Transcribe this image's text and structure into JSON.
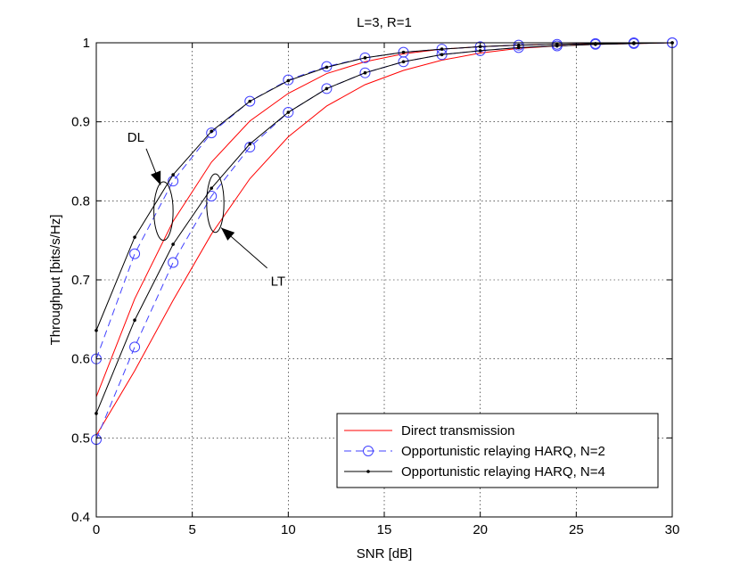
{
  "chart_data": {
    "type": "line",
    "title": "L=3, R=1",
    "xlabel": "SNR [dB]",
    "ylabel": "Throughput [bits/s/Hz]",
    "xlim": [
      0,
      30
    ],
    "ylim": [
      0.4,
      1
    ],
    "xticks": [
      0,
      5,
      10,
      15,
      20,
      25,
      30
    ],
    "yticks": [
      0.4,
      0.5,
      0.6,
      0.7,
      0.8,
      0.9,
      1
    ],
    "xtick_labels": [
      "0",
      "5",
      "10",
      "15",
      "20",
      "25",
      "30"
    ],
    "ytick_labels": [
      "0.4",
      "0.5",
      "0.6",
      "0.7",
      "0.8",
      "0.9",
      "1"
    ],
    "grid": true,
    "legend_position": "bottom-right",
    "x": [
      0,
      2,
      4,
      6,
      8,
      10,
      12,
      14,
      16,
      18,
      20,
      22,
      24,
      26,
      28,
      30
    ],
    "series": [
      {
        "name": "Direct transmission",
        "group": "DL",
        "color": "#ff0000",
        "style": "solid",
        "marker": "none",
        "values": [
          0.552,
          0.676,
          0.774,
          0.849,
          0.901,
          0.936,
          0.961,
          0.976,
          0.986,
          0.992,
          0.995,
          0.997,
          0.998,
          0.999,
          1.0,
          1.0
        ]
      },
      {
        "name": "Direct transmission",
        "group": "LT",
        "color": "#ff0000",
        "style": "solid",
        "marker": "none",
        "values": [
          0.503,
          0.585,
          0.674,
          0.758,
          0.828,
          0.881,
          0.92,
          0.947,
          0.965,
          0.978,
          0.987,
          0.993,
          0.996,
          0.998,
          0.999,
          1.0
        ]
      },
      {
        "name": "Opportunistic relaying HARQ, N=2",
        "group": "DL",
        "color": "#4040ff",
        "style": "dashed",
        "marker": "circle",
        "values": [
          0.6,
          0.733,
          0.825,
          0.886,
          0.926,
          0.953,
          0.97,
          0.981,
          0.988,
          0.992,
          0.995,
          0.997,
          0.998,
          0.999,
          1.0,
          1.0
        ]
      },
      {
        "name": "Opportunistic relaying HARQ, N=2",
        "group": "LT",
        "color": "#4040ff",
        "style": "dashed",
        "marker": "circle",
        "values": [
          0.498,
          0.615,
          0.722,
          0.806,
          0.868,
          0.912,
          0.942,
          0.962,
          0.976,
          0.985,
          0.99,
          0.994,
          0.996,
          0.998,
          0.999,
          1.0
        ]
      },
      {
        "name": "Opportunistic relaying HARQ, N=4",
        "group": "DL",
        "color": "#000000",
        "style": "solid",
        "marker": "dot",
        "values": [
          0.636,
          0.754,
          0.833,
          0.888,
          0.926,
          0.952,
          0.969,
          0.981,
          0.988,
          0.992,
          0.995,
          0.997,
          0.998,
          0.999,
          1.0,
          1.0
        ]
      },
      {
        "name": "Opportunistic relaying HARQ, N=4",
        "group": "LT",
        "color": "#000000",
        "style": "solid",
        "marker": "dot",
        "values": [
          0.531,
          0.649,
          0.745,
          0.816,
          0.872,
          0.912,
          0.942,
          0.962,
          0.976,
          0.985,
          0.99,
          0.994,
          0.996,
          0.998,
          0.999,
          1.0
        ]
      }
    ],
    "legend": [
      {
        "label": "Direct transmission",
        "color": "#ff0000",
        "style": "solid",
        "marker": "none"
      },
      {
        "label": "Opportunistic relaying HARQ, N=2",
        "color": "#4040ff",
        "style": "dashed",
        "marker": "circle"
      },
      {
        "label": "Opportunistic relaying HARQ, N=4",
        "color": "#000000",
        "style": "solid",
        "marker": "dot"
      }
    ],
    "annotations": [
      {
        "text": "DL",
        "ellipse_center": [
          3.5,
          0.787
        ],
        "ellipse_radii": [
          0.5,
          0.037
        ],
        "arrow_tail": [
          2.6,
          0.866
        ],
        "arrow_head": [
          3.35,
          0.82
        ]
      },
      {
        "text": "LT",
        "ellipse_center": [
          6.2,
          0.797
        ],
        "ellipse_radii": [
          0.45,
          0.037
        ],
        "arrow_tail": [
          8.9,
          0.715
        ],
        "arrow_head": [
          6.5,
          0.766
        ]
      }
    ]
  }
}
